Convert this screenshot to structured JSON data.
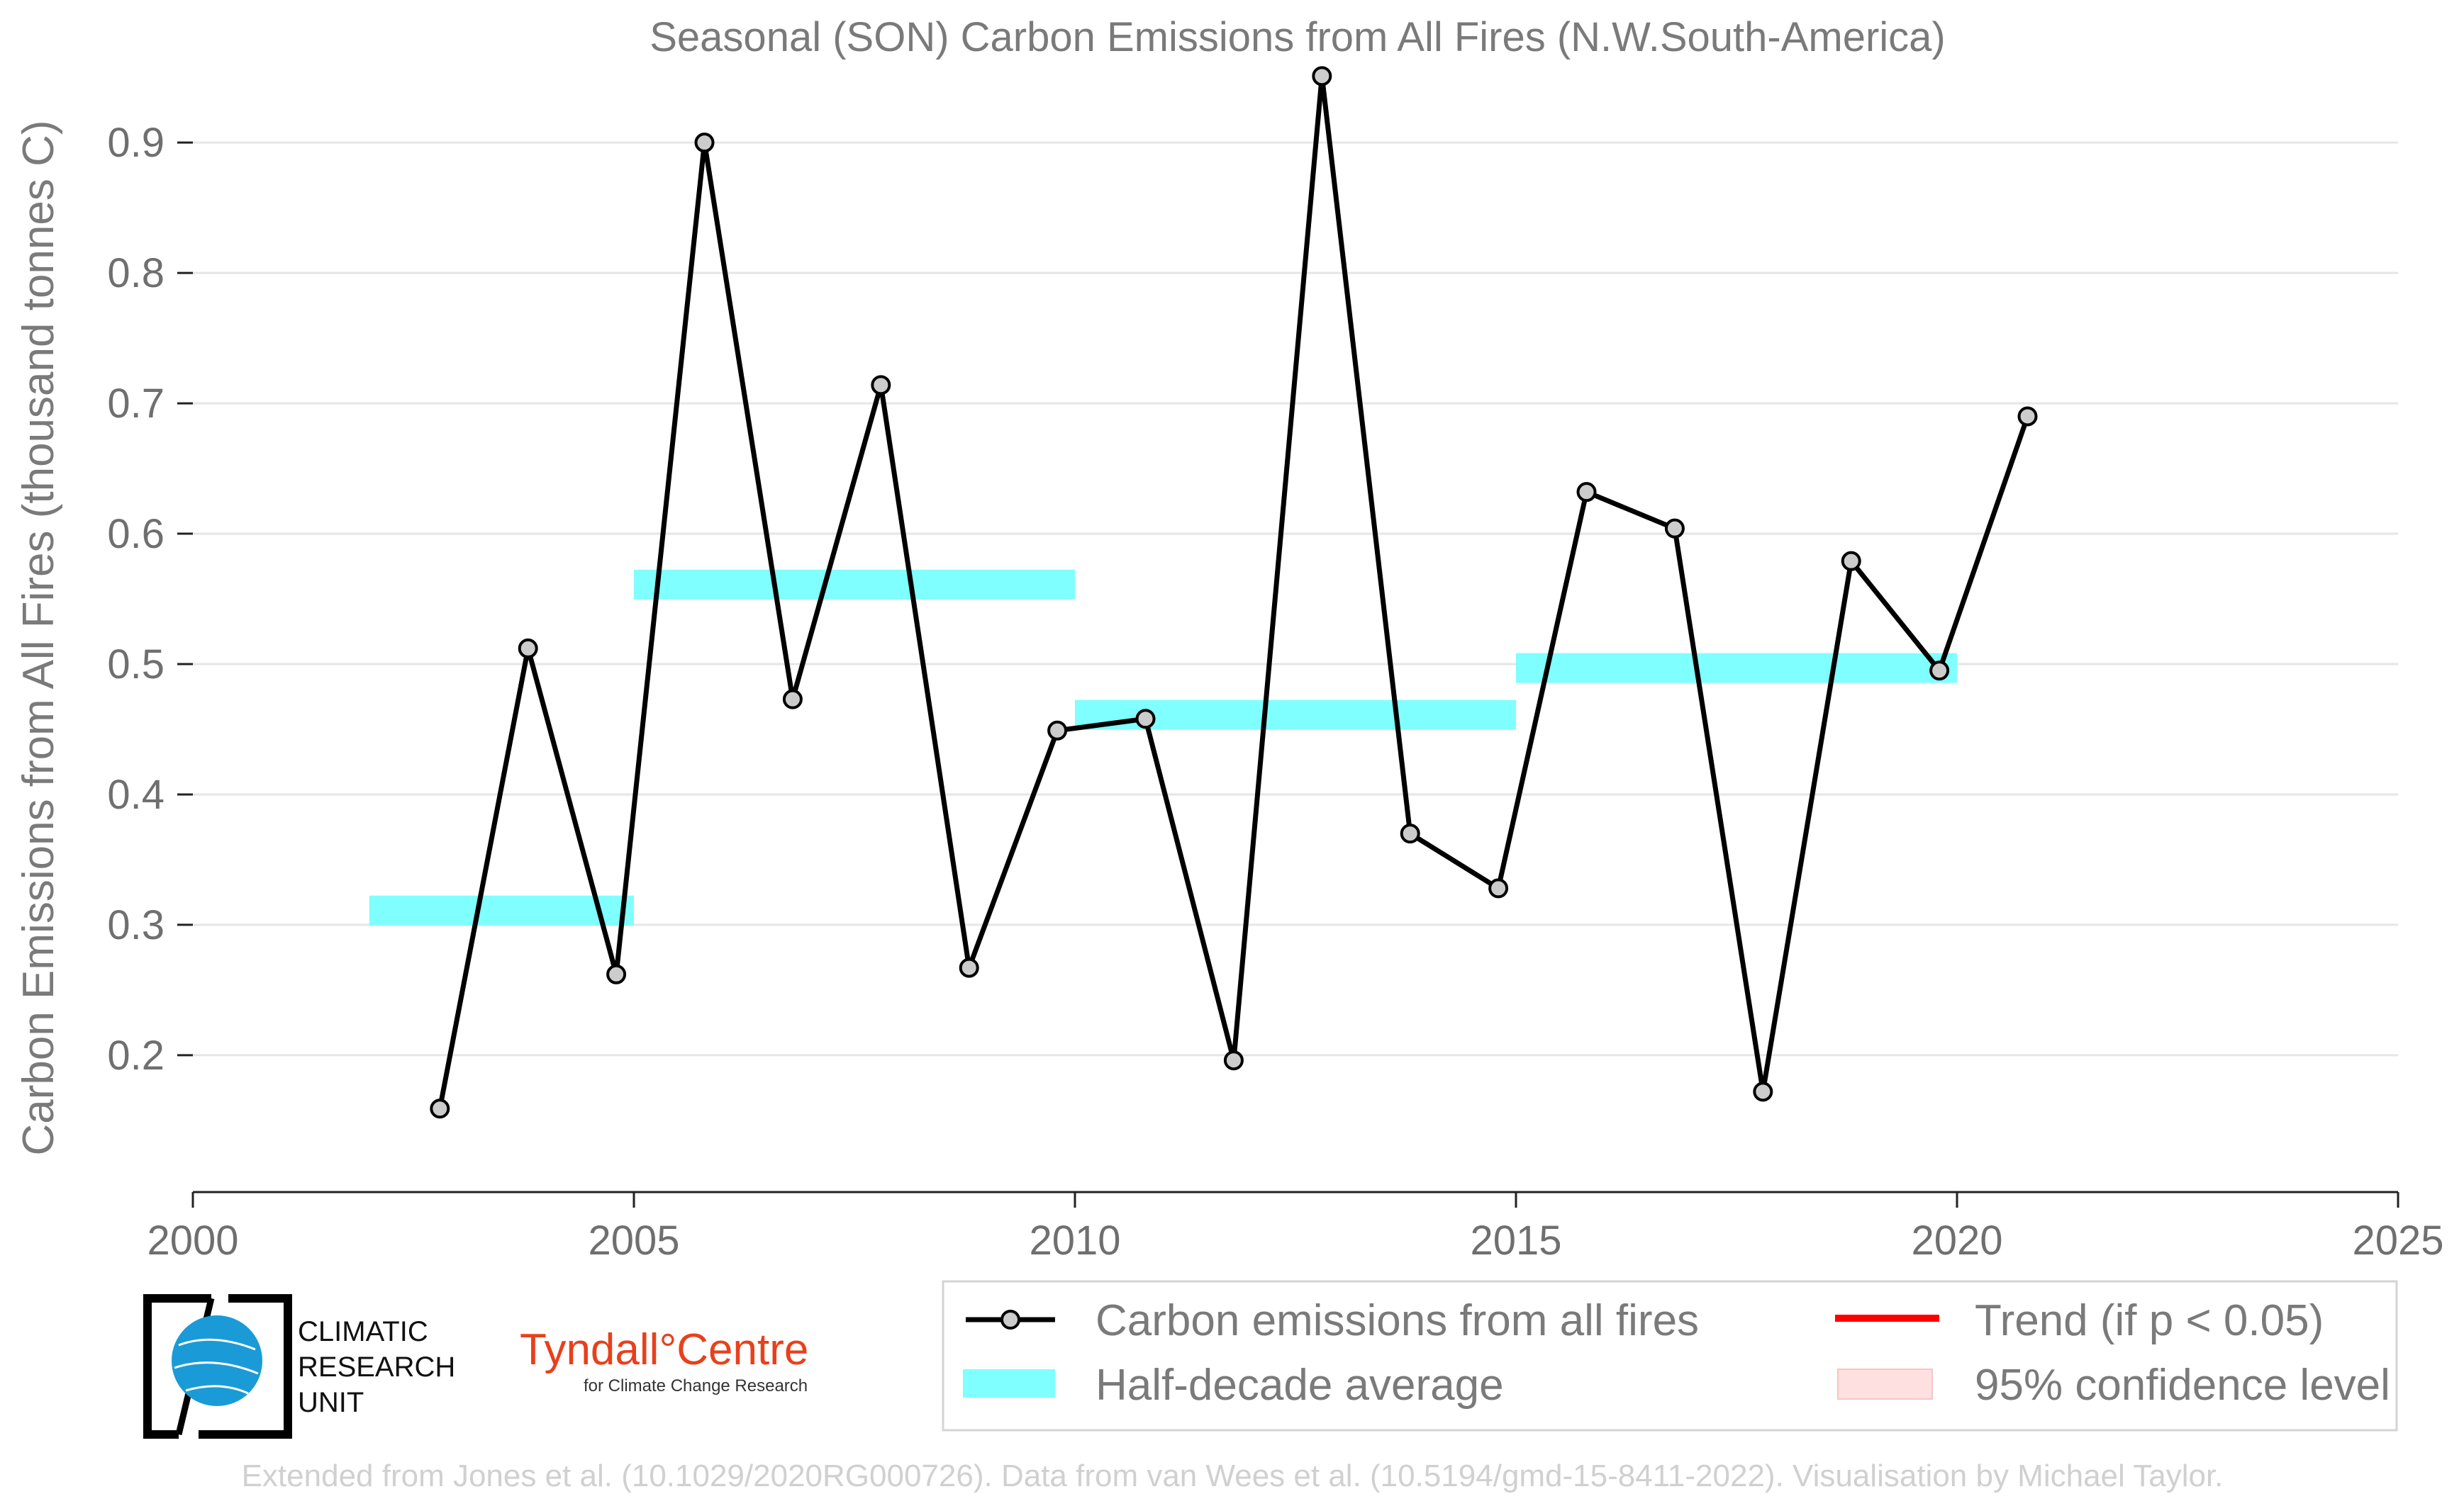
{
  "chart_data": {
    "type": "line",
    "title": "Seasonal (SON) Carbon Emissions from All Fires (N.W.South-America)",
    "xlabel": "",
    "ylabel": "Carbon Emissions from All Fires (thousand tonnes C)",
    "xlim": [
      2000,
      2025
    ],
    "ylim": [
      0.095,
      0.955
    ],
    "x_ticks": [
      2000,
      2005,
      2010,
      2015,
      2020,
      2025
    ],
    "y_ticks": [
      0.2,
      0.3,
      0.4,
      0.5,
      0.6,
      0.7,
      0.8,
      0.9
    ],
    "y_tick_labels": [
      "0.2",
      "0.3",
      "0.4",
      "0.5",
      "0.6",
      "0.7",
      "0.8",
      "0.9"
    ],
    "grid": "horizontal",
    "legend_position": "bottom",
    "series": [
      {
        "name": "Carbon emissions from all fires",
        "color": "#000000",
        "marker_fill": "#cccccc",
        "x": [
          2002.8,
          2003.8,
          2004.8,
          2005.8,
          2006.8,
          2007.8,
          2008.8,
          2009.8,
          2010.8,
          2011.8,
          2012.8,
          2013.8,
          2014.8,
          2015.8,
          2016.8,
          2017.8,
          2018.8,
          2019.8,
          2020.8
        ],
        "values": [
          0.159,
          0.512,
          0.262,
          0.9,
          0.473,
          0.714,
          0.267,
          0.449,
          0.458,
          0.196,
          0.951,
          0.37,
          0.328,
          0.632,
          0.604,
          0.172,
          0.579,
          0.495,
          0.69
        ]
      }
    ],
    "half_decade_average": {
      "name": "Half-decade average",
      "color": "#7fffff",
      "segments": [
        {
          "x_start": 2002,
          "x_end": 2005,
          "value": 0.311
        },
        {
          "x_start": 2005,
          "x_end": 2010,
          "value": 0.561
        },
        {
          "x_start": 2010,
          "x_end": 2015,
          "value": 0.461
        },
        {
          "x_start": 2015,
          "x_end": 2020,
          "value": 0.497
        }
      ]
    },
    "trend": {
      "name": "Trend (if p < 0.05)",
      "color": "#ff0000",
      "shown": false
    },
    "confidence": {
      "name": "95% confidence level",
      "color": "#ffe0e0",
      "shown": false
    }
  },
  "logos": {
    "cru_lines": [
      "CLIMATIC",
      "RESEARCH",
      "UNIT"
    ],
    "tyndall_name": "Tyndall°Centre",
    "tyndall_sub": "for Climate Change Research"
  },
  "credit": "Extended from Jones et al. (10.1029/2020RG000726). Data from van Wees et al. (10.5194/gmd-15-8411-2022). Visualisation by Michael Taylor."
}
